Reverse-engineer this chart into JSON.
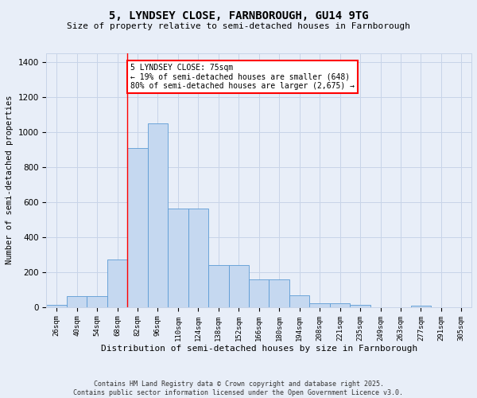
{
  "title_line1": "5, LYNDSEY CLOSE, FARNBOROUGH, GU14 9TG",
  "title_line2": "Size of property relative to semi-detached houses in Farnborough",
  "xlabel": "Distribution of semi-detached houses by size in Farnborough",
  "ylabel": "Number of semi-detached properties",
  "categories": [
    "26sqm",
    "40sqm",
    "54sqm",
    "68sqm",
    "82sqm",
    "96sqm",
    "110sqm",
    "124sqm",
    "138sqm",
    "152sqm",
    "166sqm",
    "180sqm",
    "194sqm",
    "208sqm",
    "221sqm",
    "235sqm",
    "249sqm",
    "263sqm",
    "277sqm",
    "291sqm",
    "305sqm"
  ],
  "values": [
    10,
    60,
    60,
    270,
    910,
    1050,
    560,
    560,
    240,
    240,
    155,
    155,
    65,
    20,
    20,
    10,
    0,
    0,
    5,
    0,
    0
  ],
  "bar_color": "#c5d8f0",
  "bar_edge_color": "#5b9bd5",
  "red_line_index": 4,
  "annotation_text": "5 LYNDSEY CLOSE: 75sqm\n← 19% of semi-detached houses are smaller (648)\n80% of semi-detached houses are larger (2,675) →",
  "annotation_box_color": "white",
  "annotation_box_edge_color": "red",
  "grid_color": "#c8d4e8",
  "background_color": "#e8eef8",
  "footer_line1": "Contains HM Land Registry data © Crown copyright and database right 2025.",
  "footer_line2": "Contains public sector information licensed under the Open Government Licence v3.0.",
  "ylim": [
    0,
    1450
  ],
  "yticks": [
    0,
    200,
    400,
    600,
    800,
    1000,
    1200,
    1400
  ]
}
